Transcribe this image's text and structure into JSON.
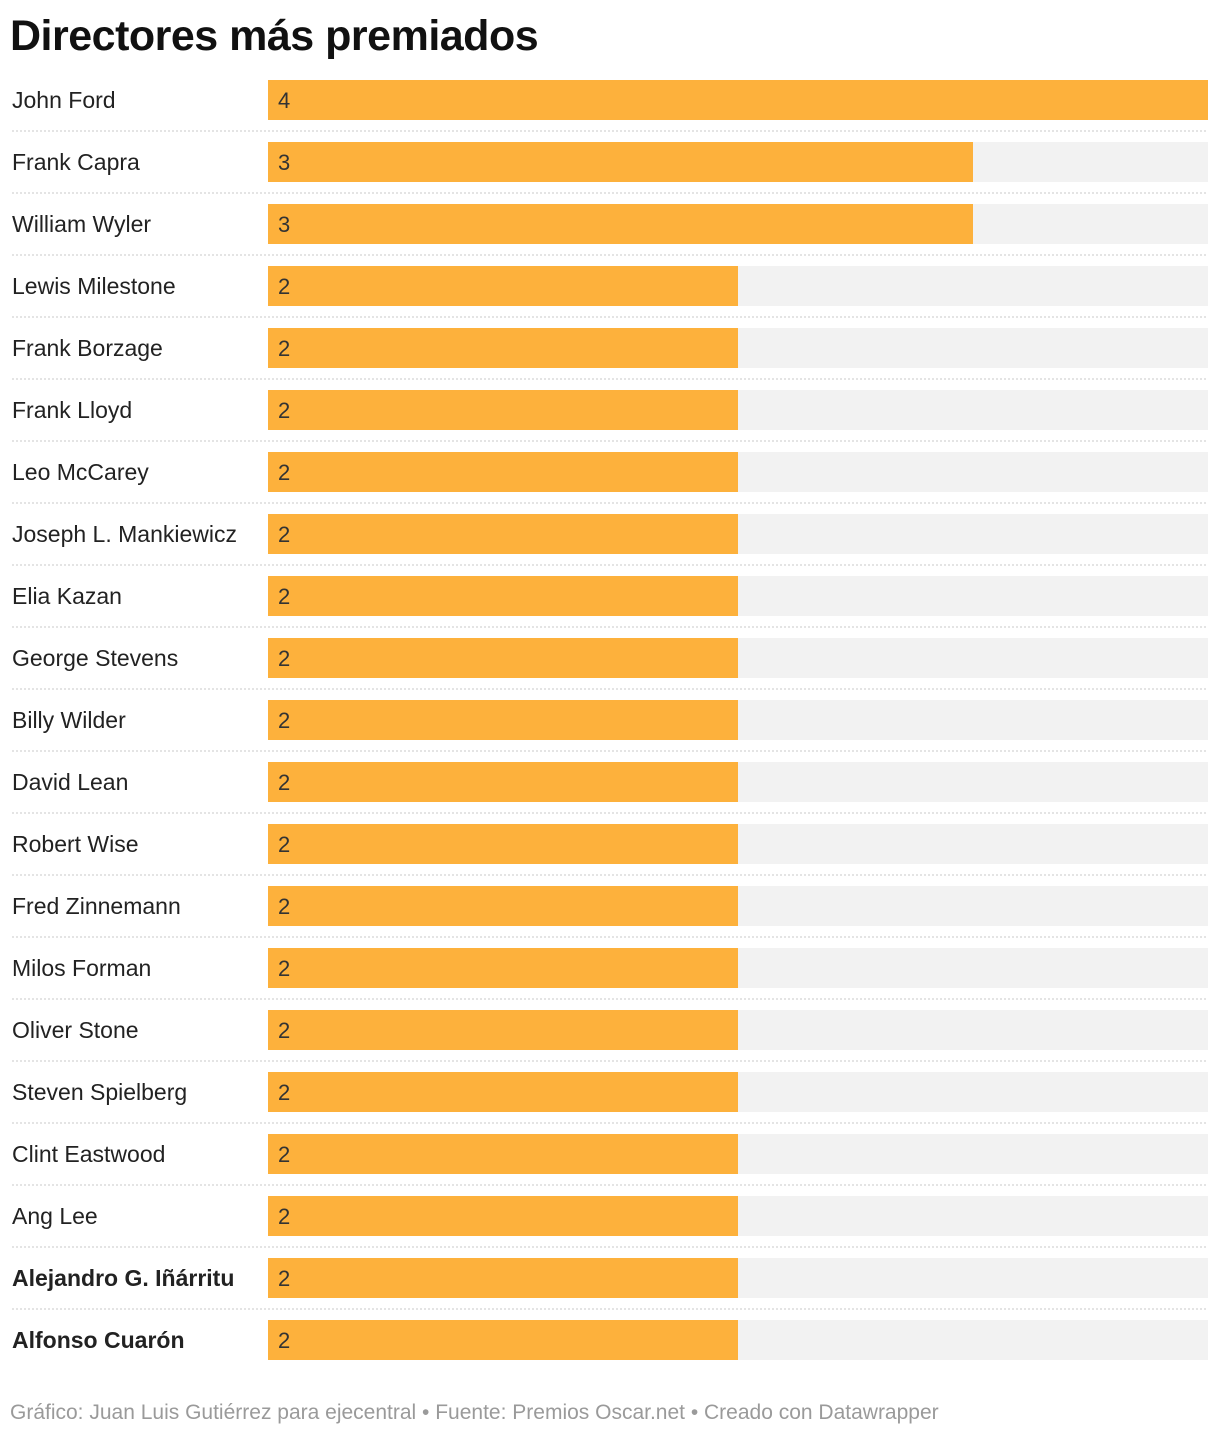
{
  "chart_data": {
    "type": "bar",
    "orientation": "horizontal",
    "title": "Directores más premiados",
    "categories": [
      "John Ford",
      "Frank Capra",
      "William Wyler",
      "Lewis Milestone",
      "Frank Borzage",
      "Frank Lloyd",
      "Leo McCarey",
      "Joseph L. Mankiewicz",
      "Elia Kazan",
      "George Stevens",
      "Billy Wilder",
      "David Lean",
      "Robert Wise",
      "Fred Zinnemann",
      "Milos Forman",
      "Oliver Stone",
      "Steven Spielberg",
      "Clint Eastwood",
      "Ang Lee",
      "Alejandro G. Iñárritu",
      "Alfonso Cuarón"
    ],
    "values": [
      4,
      3,
      3,
      2,
      2,
      2,
      2,
      2,
      2,
      2,
      2,
      2,
      2,
      2,
      2,
      2,
      2,
      2,
      2,
      2,
      2
    ],
    "highlighted": [
      "Alejandro G. Iñárritu",
      "Alfonso Cuarón"
    ],
    "xlim": [
      0,
      4
    ],
    "bar_color": "#fdb13c",
    "track_color": "#f2f2f2",
    "xlabel": "",
    "ylabel": ""
  },
  "footer": {
    "text": "Gráfico: Juan Luis Gutiérrez para ejecentral • Fuente: Premios Oscar.net • Creado con Datawrapper"
  }
}
